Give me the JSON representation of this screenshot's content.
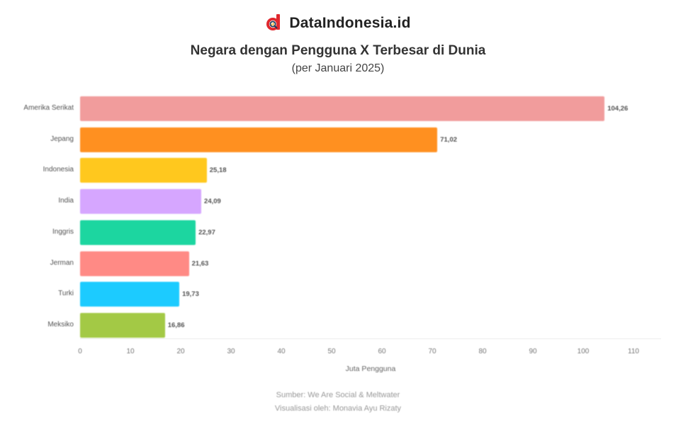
{
  "brand": {
    "name": "DataIndonesia.id",
    "logo_icon": "datainindonesia-logo-icon",
    "accent": "#e0282e"
  },
  "header": {
    "title": "Negara dengan Pengguna X Terbesar di Dunia",
    "subtitle": "(per Januari 2025)"
  },
  "chart_data": {
    "type": "bar",
    "orientation": "horizontal",
    "title": "Negara dengan Pengguna X Terbesar di Dunia",
    "subtitle": "(per Januari 2025)",
    "xlabel": "Juta Pengguna",
    "ylabel": "",
    "xlim": [
      0,
      110
    ],
    "xticks": [
      "0",
      "10",
      "20",
      "30",
      "40",
      "50",
      "60",
      "70",
      "80",
      "90",
      "100",
      "110"
    ],
    "grid": false,
    "legend": "none",
    "categories": [
      "Amerika Serikat",
      "Jepang",
      "Indonesia",
      "India",
      "Inggris",
      "Jerman",
      "Turki",
      "Meksiko"
    ],
    "values": [
      104.26,
      71.02,
      25.18,
      24.09,
      22.97,
      21.63,
      19.73,
      16.86
    ],
    "value_labels": [
      "104,26",
      "71,02",
      "25,18",
      "24,09",
      "22,97",
      "21,63",
      "19,73",
      "16,86"
    ],
    "colors": [
      "#f19c9c",
      "#ff9020",
      "#ffc81e",
      "#d6a6ff",
      "#1cd6a0",
      "#ff8a85",
      "#1ccbff",
      "#a3c945"
    ]
  },
  "footer": {
    "source": "Sumber: We Are Social & Meltwater",
    "visualized_by": "Visualisasi oleh: Monavia Ayu Rizaty"
  }
}
